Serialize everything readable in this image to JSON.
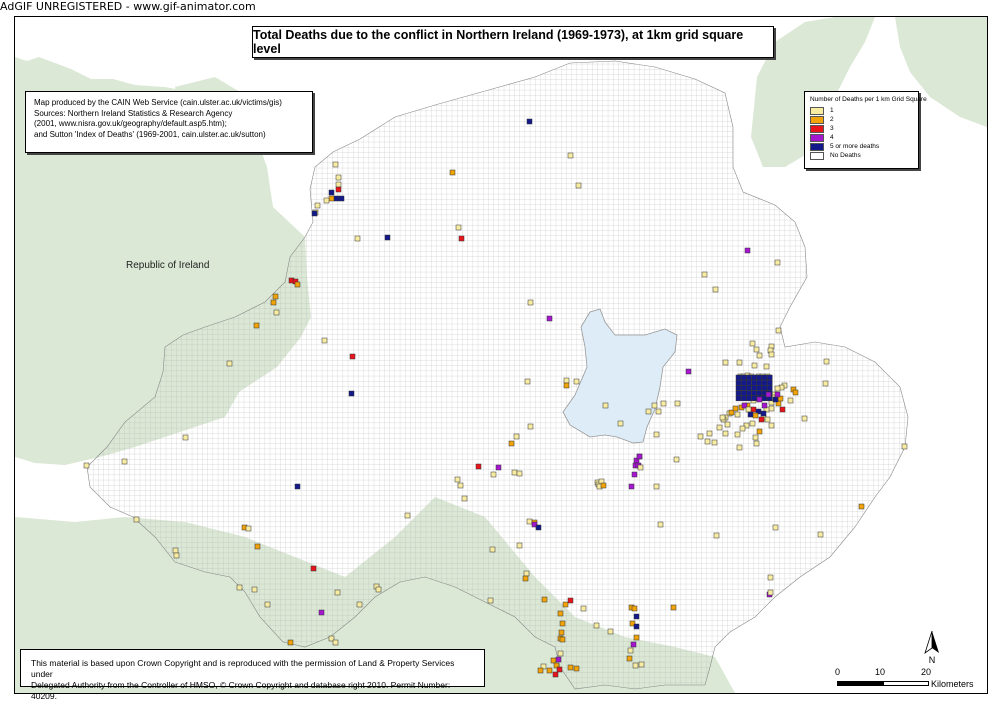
{
  "watermark": "AdGIF UNREGISTERED - www.gif-animator.com",
  "title": "Total Deaths due to the conflict in Northern Ireland (1969-1973), at 1km grid square level",
  "source_lines": [
    "Map produced by the CAIN Web Service (cain.ulster.ac.uk/victims/gis)",
    "Sources: Northern Ireland Statistics & Research Agency",
    "(2001, www.nisra.gov.uk/geography/default.asp5.htm);",
    "and Sutton 'Index of Deaths' (1969-2001, cain.ulster.ac.uk/sutton)"
  ],
  "legend": {
    "title": "Number of Deaths per 1 km Grid Square",
    "items": [
      {
        "label": "1",
        "color": "#f7eca2"
      },
      {
        "label": "2",
        "color": "#f0a30a"
      },
      {
        "label": "3",
        "color": "#e8151d"
      },
      {
        "label": "4",
        "color": "#a417cf"
      },
      {
        "label": "5 or more deaths",
        "color": "#13198a"
      },
      {
        "label": "No Deaths",
        "color": "#ffffff"
      }
    ]
  },
  "region_label": "Republic of Ireland",
  "copyright_lines": [
    "This material is based upon Crown Copyright and is reproduced with the permission of Land & Property Services under",
    "Delegated Authority from the Controller of HMSO, © Crown Copyright and database right 2010. Permit Number: 40209."
  ],
  "scale": {
    "ticks": [
      "0",
      "10",
      "20"
    ],
    "units": "Kilometers"
  },
  "north_label": "N",
  "colors": {
    "land": "#dbe8d5",
    "lake": "#ddecf6",
    "grid_line": "#b3b3b3",
    "sea": "#ffffff"
  }
}
